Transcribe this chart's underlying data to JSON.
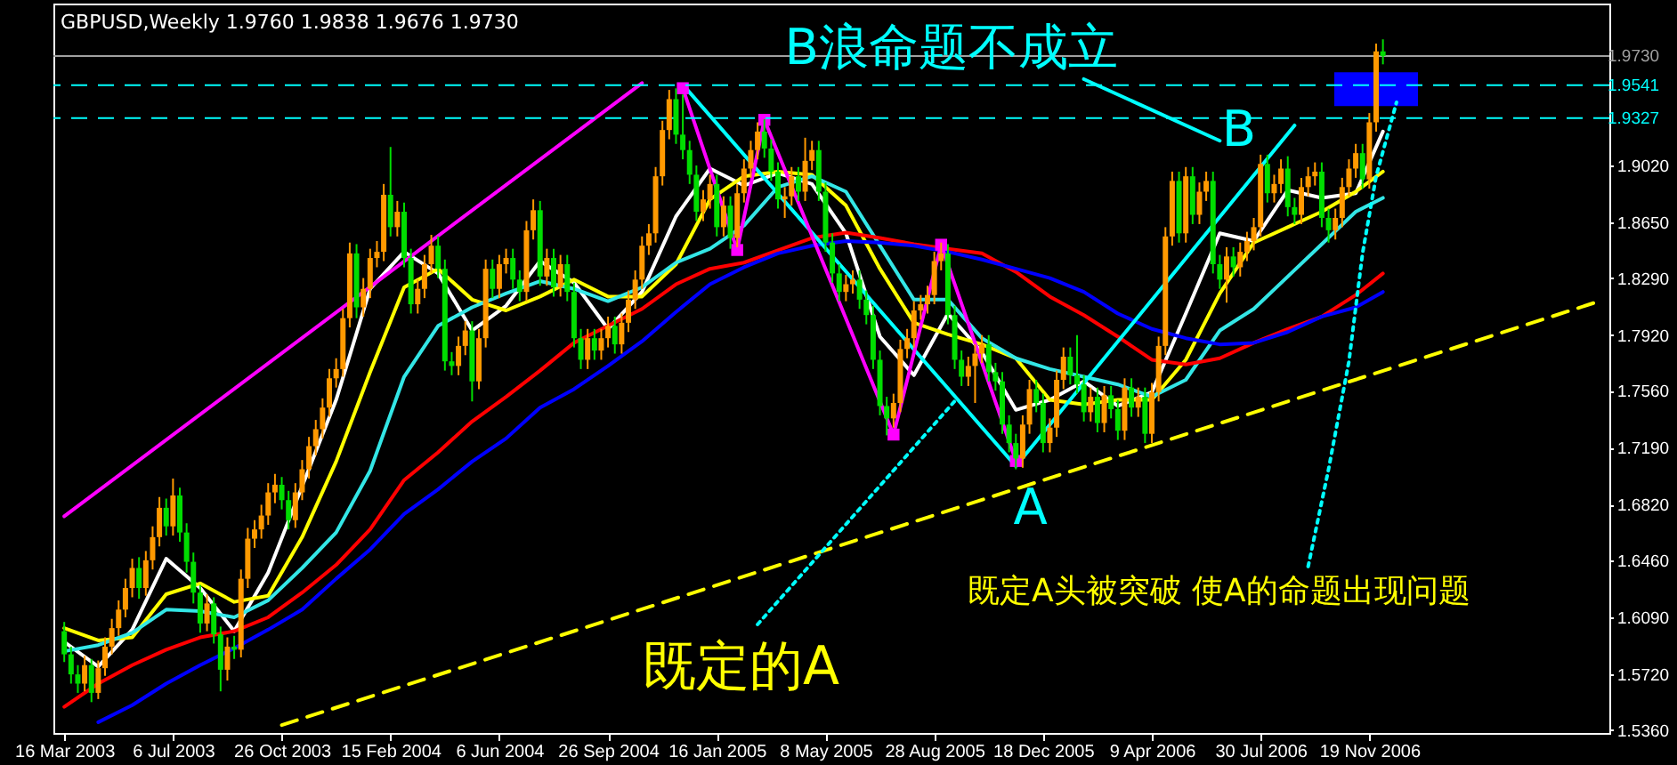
{
  "chart_data": {
    "type": "candlestick",
    "title": "GBPUSD,Weekly  1.9760 1.9838 1.9676 1.9730",
    "x": [
      "2003-03-16",
      "2003-03-23",
      "2003-03-30",
      "2003-04-06",
      "2003-04-13",
      "2003-04-20",
      "2003-04-27",
      "2003-05-04",
      "2003-05-11",
      "2003-05-18",
      "2003-05-25",
      "2003-06-01",
      "2003-06-08",
      "2003-06-15",
      "2003-06-22",
      "2003-06-29",
      "2003-07-06",
      "2003-07-13",
      "2003-07-20",
      "2003-07-27",
      "2003-08-03",
      "2003-08-10",
      "2003-08-17",
      "2003-08-24",
      "2003-08-31",
      "2003-09-07",
      "2003-09-14",
      "2003-09-21",
      "2003-09-28",
      "2003-10-05",
      "2003-10-12",
      "2003-10-19",
      "2003-10-26",
      "2003-11-02",
      "2003-11-09",
      "2003-11-16",
      "2003-11-23",
      "2003-11-30",
      "2003-12-07",
      "2003-12-14",
      "2003-12-21",
      "2003-12-28",
      "2004-01-04",
      "2004-01-11",
      "2004-01-18",
      "2004-01-25",
      "2004-02-01",
      "2004-02-08",
      "2004-02-15",
      "2004-02-22",
      "2004-02-29",
      "2004-03-07",
      "2004-03-14",
      "2004-03-21",
      "2004-03-28",
      "2004-04-04",
      "2004-04-11",
      "2004-04-18",
      "2004-04-25",
      "2004-05-02",
      "2004-05-09",
      "2004-05-16",
      "2004-05-23",
      "2004-05-30",
      "2004-06-06",
      "2004-06-13",
      "2004-06-20",
      "2004-06-27",
      "2004-07-04",
      "2004-07-11",
      "2004-07-18",
      "2004-07-25",
      "2004-08-01",
      "2004-08-08",
      "2004-08-15",
      "2004-08-22",
      "2004-08-29",
      "2004-09-05",
      "2004-09-12",
      "2004-09-19",
      "2004-09-26",
      "2004-10-03",
      "2004-10-10",
      "2004-10-17",
      "2004-10-24",
      "2004-10-31",
      "2004-11-07",
      "2004-11-14",
      "2004-11-21",
      "2004-11-28",
      "2004-12-05",
      "2004-12-12",
      "2004-12-19",
      "2004-12-26",
      "2005-01-02",
      "2005-01-09",
      "2005-01-16",
      "2005-01-23",
      "2005-01-30",
      "2005-02-06",
      "2005-02-13",
      "2005-02-20",
      "2005-02-27",
      "2005-03-06",
      "2005-03-13",
      "2005-03-20",
      "2005-03-27",
      "2005-04-03",
      "2005-04-10",
      "2005-04-17",
      "2005-04-24",
      "2005-05-01",
      "2005-05-08",
      "2005-05-15",
      "2005-05-22",
      "2005-05-29",
      "2005-06-05",
      "2005-06-12",
      "2005-06-19",
      "2005-06-26",
      "2005-07-03",
      "2005-07-10",
      "2005-07-17",
      "2005-07-24",
      "2005-07-31",
      "2005-08-07",
      "2005-08-14",
      "2005-08-21",
      "2005-08-28",
      "2005-09-04",
      "2005-09-11",
      "2005-09-18",
      "2005-09-25",
      "2005-10-02",
      "2005-10-09",
      "2005-10-16",
      "2005-10-23",
      "2005-10-30",
      "2005-11-06",
      "2005-11-13",
      "2005-11-20",
      "2005-11-27",
      "2005-12-04",
      "2005-12-11",
      "2005-12-18",
      "2005-12-25",
      "2006-01-01",
      "2006-01-08",
      "2006-01-15",
      "2006-01-22",
      "2006-01-29",
      "2006-02-05",
      "2006-02-12",
      "2006-02-19",
      "2006-02-26",
      "2006-03-05",
      "2006-03-12",
      "2006-03-19",
      "2006-03-26",
      "2006-04-02",
      "2006-04-09",
      "2006-04-16",
      "2006-04-23",
      "2006-04-30",
      "2006-05-07",
      "2006-05-14",
      "2006-05-21",
      "2006-05-28",
      "2006-06-04",
      "2006-06-11",
      "2006-06-18",
      "2006-06-25",
      "2006-07-02",
      "2006-07-09",
      "2006-07-16",
      "2006-07-23",
      "2006-07-30",
      "2006-08-06",
      "2006-08-13",
      "2006-08-20",
      "2006-08-27",
      "2006-09-03",
      "2006-09-10",
      "2006-09-17",
      "2006-09-24",
      "2006-10-01",
      "2006-10-08",
      "2006-10-15",
      "2006-10-22",
      "2006-10-29",
      "2006-11-05",
      "2006-11-12",
      "2006-11-19",
      "2006-11-26",
      "2006-12-03"
    ],
    "ohlc": [
      [
        1.6,
        1.606,
        1.58,
        1.585
      ],
      [
        1.585,
        1.59,
        1.566,
        1.572
      ],
      [
        1.572,
        1.578,
        1.56,
        1.566
      ],
      [
        1.566,
        1.584,
        1.561,
        1.578
      ],
      [
        1.578,
        1.582,
        1.554,
        1.56
      ],
      [
        1.56,
        1.581,
        1.556,
        1.576
      ],
      [
        1.576,
        1.596,
        1.571,
        1.59
      ],
      [
        1.59,
        1.608,
        1.585,
        1.602
      ],
      [
        1.602,
        1.62,
        1.597,
        1.614
      ],
      [
        1.614,
        1.634,
        1.609,
        1.628
      ],
      [
        1.628,
        1.647,
        1.622,
        1.641
      ],
      [
        1.641,
        1.648,
        1.621,
        1.628
      ],
      [
        1.628,
        1.652,
        1.623,
        1.646
      ],
      [
        1.646,
        1.668,
        1.64,
        1.661
      ],
      [
        1.661,
        1.687,
        1.655,
        1.68
      ],
      [
        1.68,
        1.686,
        1.662,
        1.668
      ],
      [
        1.668,
        1.699,
        1.662,
        1.688
      ],
      [
        1.688,
        1.693,
        1.658,
        1.664
      ],
      [
        1.664,
        1.67,
        1.638,
        1.645
      ],
      [
        1.645,
        1.651,
        1.618,
        1.625
      ],
      [
        1.625,
        1.63,
        1.599,
        1.605
      ],
      [
        1.605,
        1.624,
        1.6,
        1.618
      ],
      [
        1.618,
        1.622,
        1.592,
        1.598
      ],
      [
        1.598,
        1.603,
        1.561,
        1.575
      ],
      [
        1.575,
        1.596,
        1.568,
        1.59
      ],
      [
        1.59,
        1.597,
        1.582,
        1.588
      ],
      [
        1.588,
        1.64,
        1.583,
        1.634
      ],
      [
        1.634,
        1.667,
        1.628,
        1.66
      ],
      [
        1.66,
        1.672,
        1.654,
        1.666
      ],
      [
        1.666,
        1.682,
        1.66,
        1.675
      ],
      [
        1.675,
        1.696,
        1.669,
        1.69
      ],
      [
        1.69,
        1.702,
        1.683,
        1.695
      ],
      [
        1.695,
        1.7,
        1.679,
        1.685
      ],
      [
        1.685,
        1.691,
        1.666,
        1.672
      ],
      [
        1.672,
        1.696,
        1.667,
        1.69
      ],
      [
        1.69,
        1.711,
        1.685,
        1.705
      ],
      [
        1.705,
        1.726,
        1.699,
        1.72
      ],
      [
        1.72,
        1.737,
        1.714,
        1.731
      ],
      [
        1.731,
        1.751,
        1.725,
        1.745
      ],
      [
        1.745,
        1.77,
        1.739,
        1.764
      ],
      [
        1.764,
        1.777,
        1.758,
        1.77
      ],
      [
        1.77,
        1.809,
        1.765,
        1.803
      ],
      [
        1.803,
        1.852,
        1.797,
        1.845
      ],
      [
        1.845,
        1.851,
        1.803,
        1.81
      ],
      [
        1.81,
        1.829,
        1.804,
        1.822
      ],
      [
        1.822,
        1.848,
        1.816,
        1.842
      ],
      [
        1.842,
        1.853,
        1.836,
        1.846
      ],
      [
        1.846,
        1.89,
        1.84,
        1.883
      ],
      [
        1.883,
        1.914,
        1.856,
        1.862
      ],
      [
        1.862,
        1.879,
        1.856,
        1.872
      ],
      [
        1.872,
        1.878,
        1.836,
        1.842
      ],
      [
        1.842,
        1.848,
        1.806,
        1.812
      ],
      [
        1.812,
        1.828,
        1.806,
        1.822
      ],
      [
        1.822,
        1.844,
        1.816,
        1.838
      ],
      [
        1.838,
        1.857,
        1.832,
        1.85
      ],
      [
        1.85,
        1.856,
        1.829,
        1.835
      ],
      [
        1.835,
        1.841,
        1.769,
        1.775
      ],
      [
        1.775,
        1.781,
        1.766,
        1.772
      ],
      [
        1.772,
        1.791,
        1.766,
        1.785
      ],
      [
        1.785,
        1.801,
        1.779,
        1.795
      ],
      [
        1.795,
        1.801,
        1.749,
        1.762
      ],
      [
        1.762,
        1.796,
        1.757,
        1.79
      ],
      [
        1.79,
        1.841,
        1.784,
        1.835
      ],
      [
        1.835,
        1.841,
        1.816,
        1.822
      ],
      [
        1.822,
        1.844,
        1.816,
        1.838
      ],
      [
        1.838,
        1.848,
        1.832,
        1.842
      ],
      [
        1.842,
        1.848,
        1.822,
        1.828
      ],
      [
        1.828,
        1.834,
        1.814,
        1.82
      ],
      [
        1.82,
        1.866,
        1.814,
        1.86
      ],
      [
        1.86,
        1.88,
        1.854,
        1.873
      ],
      [
        1.873,
        1.879,
        1.824,
        1.83
      ],
      [
        1.83,
        1.848,
        1.824,
        1.842
      ],
      [
        1.842,
        1.848,
        1.817,
        1.823
      ],
      [
        1.823,
        1.844,
        1.817,
        1.838
      ],
      [
        1.838,
        1.844,
        1.814,
        1.82
      ],
      [
        1.82,
        1.826,
        1.784,
        1.79
      ],
      [
        1.79,
        1.796,
        1.77,
        1.776
      ],
      [
        1.776,
        1.796,
        1.77,
        1.79
      ],
      [
        1.79,
        1.796,
        1.776,
        1.782
      ],
      [
        1.782,
        1.796,
        1.776,
        1.79
      ],
      [
        1.79,
        1.804,
        1.784,
        1.798
      ],
      [
        1.798,
        1.804,
        1.78,
        1.786
      ],
      [
        1.786,
        1.806,
        1.78,
        1.8
      ],
      [
        1.8,
        1.821,
        1.794,
        1.815
      ],
      [
        1.815,
        1.834,
        1.809,
        1.828
      ],
      [
        1.828,
        1.856,
        1.822,
        1.85
      ],
      [
        1.85,
        1.864,
        1.844,
        1.858
      ],
      [
        1.858,
        1.901,
        1.852,
        1.895
      ],
      [
        1.895,
        1.931,
        1.889,
        1.925
      ],
      [
        1.925,
        1.951,
        1.919,
        1.945
      ],
      [
        1.945,
        1.952,
        1.916,
        1.922
      ],
      [
        1.922,
        1.948,
        1.906,
        1.912
      ],
      [
        1.912,
        1.918,
        1.89,
        1.896
      ],
      [
        1.896,
        1.902,
        1.866,
        1.872
      ],
      [
        1.872,
        1.886,
        1.866,
        1.88
      ],
      [
        1.88,
        1.896,
        1.874,
        1.89
      ],
      [
        1.89,
        1.896,
        1.856,
        1.862
      ],
      [
        1.862,
        1.882,
        1.856,
        1.876
      ],
      [
        1.876,
        1.882,
        1.848,
        1.855
      ],
      [
        1.855,
        1.89,
        1.849,
        1.884
      ],
      [
        1.884,
        1.906,
        1.878,
        1.9
      ],
      [
        1.9,
        1.918,
        1.894,
        1.912
      ],
      [
        1.912,
        1.93,
        1.906,
        1.924
      ],
      [
        1.924,
        1.932,
        1.907,
        1.913
      ],
      [
        1.913,
        1.919,
        1.892,
        1.898
      ],
      [
        1.898,
        1.904,
        1.874,
        1.88
      ],
      [
        1.88,
        1.888,
        1.868,
        1.882
      ],
      [
        1.882,
        1.901,
        1.876,
        1.895
      ],
      [
        1.895,
        1.901,
        1.879,
        1.885
      ],
      [
        1.885,
        1.92,
        1.879,
        1.905
      ],
      [
        1.905,
        1.918,
        1.899,
        1.912
      ],
      [
        1.912,
        1.918,
        1.879,
        1.885
      ],
      [
        1.885,
        1.891,
        1.846,
        1.852
      ],
      [
        1.852,
        1.858,
        1.826,
        1.832
      ],
      [
        1.832,
        1.838,
        1.814,
        1.82
      ],
      [
        1.82,
        1.831,
        1.814,
        1.825
      ],
      [
        1.825,
        1.834,
        1.819,
        1.828
      ],
      [
        1.828,
        1.834,
        1.809,
        1.815
      ],
      [
        1.815,
        1.821,
        1.799,
        1.805
      ],
      [
        1.805,
        1.811,
        1.77,
        1.776
      ],
      [
        1.776,
        1.782,
        1.74,
        1.746
      ],
      [
        1.746,
        1.752,
        1.727,
        1.738
      ],
      [
        1.738,
        1.754,
        1.732,
        1.748
      ],
      [
        1.748,
        1.789,
        1.742,
        1.783
      ],
      [
        1.783,
        1.796,
        1.777,
        1.79
      ],
      [
        1.79,
        1.814,
        1.784,
        1.808
      ],
      [
        1.808,
        1.818,
        1.802,
        1.812
      ],
      [
        1.812,
        1.824,
        1.806,
        1.818
      ],
      [
        1.818,
        1.846,
        1.812,
        1.84
      ],
      [
        1.84,
        1.852,
        1.834,
        1.845
      ],
      [
        1.845,
        1.851,
        1.799,
        1.805
      ],
      [
        1.805,
        1.811,
        1.77,
        1.776
      ],
      [
        1.776,
        1.782,
        1.759,
        1.765
      ],
      [
        1.765,
        1.778,
        1.759,
        1.772
      ],
      [
        1.772,
        1.786,
        1.748,
        1.78
      ],
      [
        1.78,
        1.792,
        1.774,
        1.786
      ],
      [
        1.786,
        1.792,
        1.762,
        1.768
      ],
      [
        1.768,
        1.774,
        1.756,
        1.762
      ],
      [
        1.762,
        1.768,
        1.728,
        1.734
      ],
      [
        1.734,
        1.74,
        1.716,
        1.722
      ],
      [
        1.722,
        1.728,
        1.705,
        1.712
      ],
      [
        1.712,
        1.74,
        1.706,
        1.734
      ],
      [
        1.734,
        1.763,
        1.728,
        1.757
      ],
      [
        1.757,
        1.763,
        1.742,
        1.748
      ],
      [
        1.748,
        1.754,
        1.716,
        1.722
      ],
      [
        1.722,
        1.738,
        1.716,
        1.732
      ],
      [
        1.732,
        1.769,
        1.726,
        1.763
      ],
      [
        1.763,
        1.784,
        1.757,
        1.778
      ],
      [
        1.778,
        1.784,
        1.76,
        1.766
      ],
      [
        1.766,
        1.792,
        1.754,
        1.76
      ],
      [
        1.76,
        1.766,
        1.736,
        1.742
      ],
      [
        1.742,
        1.758,
        1.736,
        1.752
      ],
      [
        1.752,
        1.758,
        1.729,
        1.735
      ],
      [
        1.735,
        1.759,
        1.729,
        1.753
      ],
      [
        1.753,
        1.759,
        1.738,
        1.744
      ],
      [
        1.744,
        1.75,
        1.724,
        1.73
      ],
      [
        1.73,
        1.764,
        1.724,
        1.758
      ],
      [
        1.758,
        1.764,
        1.739,
        1.745
      ],
      [
        1.745,
        1.758,
        1.739,
        1.752
      ],
      [
        1.752,
        1.758,
        1.722,
        1.728
      ],
      [
        1.728,
        1.761,
        1.722,
        1.755
      ],
      [
        1.755,
        1.791,
        1.749,
        1.785
      ],
      [
        1.785,
        1.862,
        1.779,
        1.856
      ],
      [
        1.856,
        1.898,
        1.85,
        1.892
      ],
      [
        1.892,
        1.898,
        1.852,
        1.858
      ],
      [
        1.858,
        1.901,
        1.852,
        1.895
      ],
      [
        1.895,
        1.901,
        1.864,
        1.87
      ],
      [
        1.87,
        1.891,
        1.864,
        1.885
      ],
      [
        1.885,
        1.898,
        1.879,
        1.892
      ],
      [
        1.892,
        1.898,
        1.832,
        1.838
      ],
      [
        1.838,
        1.844,
        1.822,
        1.828
      ],
      [
        1.828,
        1.849,
        1.813,
        1.843
      ],
      [
        1.843,
        1.849,
        1.83,
        1.836
      ],
      [
        1.836,
        1.852,
        1.83,
        1.846
      ],
      [
        1.846,
        1.859,
        1.84,
        1.853
      ],
      [
        1.853,
        1.868,
        1.847,
        1.862
      ],
      [
        1.862,
        1.909,
        1.856,
        1.903
      ],
      [
        1.903,
        1.909,
        1.878,
        1.884
      ],
      [
        1.884,
        1.896,
        1.878,
        1.89
      ],
      [
        1.89,
        1.906,
        1.884,
        1.9
      ],
      [
        1.9,
        1.908,
        1.869,
        1.875
      ],
      [
        1.875,
        1.881,
        1.864,
        1.87
      ],
      [
        1.87,
        1.894,
        1.864,
        1.888
      ],
      [
        1.888,
        1.901,
        1.882,
        1.895
      ],
      [
        1.895,
        1.904,
        1.889,
        1.898
      ],
      [
        1.898,
        1.904,
        1.862,
        1.868
      ],
      [
        1.868,
        1.874,
        1.852,
        1.86
      ],
      [
        1.86,
        1.874,
        1.854,
        1.868
      ],
      [
        1.868,
        1.894,
        1.862,
        1.888
      ],
      [
        1.888,
        1.906,
        1.882,
        1.9
      ],
      [
        1.9,
        1.916,
        1.894,
        1.91
      ],
      [
        1.91,
        1.916,
        1.887,
        1.893
      ],
      [
        1.893,
        1.936,
        1.887,
        1.93
      ],
      [
        1.93,
        1.981,
        1.924,
        1.976
      ],
      [
        1.976,
        1.9838,
        1.9676,
        1.973
      ]
    ],
    "colors": [
      "#00dd00",
      "#00dd00",
      "#00dd00",
      "#ff9900",
      "#00dd00",
      "#ff9900",
      "#ff9900",
      "#ff9900",
      "#ff9900",
      "#ff9900",
      "#ff9900",
      "#00dd00",
      "#ff9900",
      "#ff9900",
      "#ff9900",
      "#00dd00",
      "#ff9900",
      "#00dd00",
      "#00dd00",
      "#00dd00",
      "#00dd00",
      "#ff9900",
      "#00dd00",
      "#00dd00",
      "#ff9900",
      "#00dd00",
      "#ff9900",
      "#ff9900",
      "#ff9900",
      "#ff9900",
      "#ff9900",
      "#ff9900",
      "#00dd00",
      "#00dd00",
      "#ff9900",
      "#ff9900",
      "#ff9900",
      "#ff9900",
      "#ff9900",
      "#ff9900",
      "#ff9900",
      "#ff9900",
      "#ff9900",
      "#00dd00",
      "#ff9900",
      "#ff9900",
      "#ff9900",
      "#ff9900",
      "#00dd00",
      "#ff9900",
      "#00dd00",
      "#00dd00",
      "#ff9900",
      "#ff9900",
      "#ff9900",
      "#00dd00",
      "#00dd00",
      "#00dd00",
      "#ff9900",
      "#ff9900",
      "#00dd00",
      "#ff9900",
      "#ff9900",
      "#00dd00",
      "#ff9900",
      "#ff9900",
      "#00dd00",
      "#00dd00",
      "#ff9900",
      "#ff9900",
      "#00dd00",
      "#ff9900",
      "#00dd00",
      "#ff9900",
      "#00dd00",
      "#00dd00",
      "#00dd00",
      "#ff9900",
      "#00dd00",
      "#ff9900",
      "#ff9900",
      "#00dd00",
      "#ff9900",
      "#ff9900",
      "#ff9900",
      "#ff9900",
      "#ff9900",
      "#ff9900",
      "#ff9900",
      "#ff9900",
      "#00dd00",
      "#00dd00",
      "#00dd00",
      "#00dd00",
      "#ff9900",
      "#ff9900",
      "#00dd00",
      "#ff9900",
      "#00dd00",
      "#ff9900",
      "#ff9900",
      "#ff9900",
      "#ff9900",
      "#00dd00",
      "#00dd00",
      "#00dd00",
      "#ff9900",
      "#ff9900",
      "#00dd00",
      "#ff9900",
      "#ff9900",
      "#00dd00",
      "#00dd00",
      "#00dd00",
      "#00dd00",
      "#ff9900",
      "#ff9900",
      "#00dd00",
      "#00dd00",
      "#00dd00",
      "#00dd00",
      "#00dd00",
      "#ff9900",
      "#ff9900",
      "#ff9900",
      "#ff9900",
      "#ff9900",
      "#ff9900",
      "#ff9900",
      "#ff9900",
      "#00dd00",
      "#00dd00",
      "#00dd00",
      "#ff9900",
      "#ff9900",
      "#ff9900",
      "#00dd00",
      "#00dd00",
      "#00dd00",
      "#00dd00",
      "#00dd00",
      "#ff9900",
      "#ff9900",
      "#00dd00",
      "#00dd00",
      "#ff9900",
      "#ff9900",
      "#ff9900",
      "#00dd00",
      "#00dd00",
      "#00dd00",
      "#ff9900",
      "#00dd00",
      "#ff9900",
      "#00dd00",
      "#00dd00",
      "#ff9900",
      "#00dd00",
      "#ff9900",
      "#00dd00",
      "#ff9900",
      "#ff9900",
      "#ff9900",
      "#ff9900",
      "#00dd00",
      "#ff9900",
      "#00dd00",
      "#ff9900",
      "#ff9900",
      "#00dd00",
      "#00dd00",
      "#ff9900",
      "#00dd00",
      "#ff9900",
      "#ff9900",
      "#ff9900",
      "#ff9900",
      "#00dd00",
      "#ff9900",
      "#ff9900",
      "#00dd00",
      "#00dd00",
      "#ff9900",
      "#ff9900",
      "#ff9900",
      "#00dd00",
      "#00dd00",
      "#ff9900",
      "#ff9900",
      "#ff9900",
      "#ff9900",
      "#00dd00",
      "#ff9900",
      "#ff9900",
      "#00dd00"
    ],
    "series": [
      {
        "type": "bar",
        "color": "#0000ff",
        "x": [
          "2006-11-26"
        ],
        "base": [
          1.9405
        ],
        "values": [
          0.022
        ]
      },
      {
        "type": "line",
        "color": "#ffffff",
        "x": [
          "2003-03-16",
          "2003-04-20",
          "2003-05-25",
          "2003-06-29",
          "2003-08-03",
          "2003-09-07",
          "2003-10-12",
          "2003-11-16",
          "2003-12-21",
          "2004-01-25",
          "2004-02-29",
          "2004-04-04",
          "2004-05-09",
          "2004-06-13",
          "2004-07-18",
          "2004-08-22",
          "2004-09-26",
          "2004-10-31",
          "2004-12-05",
          "2005-01-09",
          "2005-02-13",
          "2005-03-20",
          "2005-04-24",
          "2005-05-29",
          "2005-07-03",
          "2005-08-07",
          "2005-09-11",
          "2005-10-16",
          "2005-11-20",
          "2005-12-25",
          "2006-01-29",
          "2006-03-05",
          "2006-04-09",
          "2006-05-14",
          "2006-06-18",
          "2006-07-23",
          "2006-08-27",
          "2006-10-01",
          "2006-11-05",
          "2006-12-03"
        ],
        "values": [
          1.593,
          1.577,
          1.601,
          1.647,
          1.628,
          1.6,
          1.638,
          1.694,
          1.75,
          1.822,
          1.846,
          1.832,
          1.795,
          1.811,
          1.84,
          1.826,
          1.796,
          1.82,
          1.869,
          1.9,
          1.889,
          1.897,
          1.89,
          1.858,
          1.791,
          1.766,
          1.806,
          1.781,
          1.7435,
          1.75,
          1.762,
          1.746,
          1.755,
          1.806,
          1.858,
          1.853,
          1.886,
          1.881,
          1.884,
          1.924
        ]
      },
      {
        "type": "line",
        "color": "#ffff00",
        "x": [
          "2003-03-16",
          "2003-04-20",
          "2003-05-25",
          "2003-06-29",
          "2003-08-03",
          "2003-09-07",
          "2003-10-12",
          "2003-11-16",
          "2003-12-21",
          "2004-01-25",
          "2004-02-29",
          "2004-04-04",
          "2004-05-09",
          "2004-06-13",
          "2004-07-18",
          "2004-08-22",
          "2004-09-26",
          "2004-10-31",
          "2004-12-05",
          "2005-01-09",
          "2005-02-13",
          "2005-03-20",
          "2005-04-24",
          "2005-05-29",
          "2005-07-03",
          "2005-08-07",
          "2005-09-11",
          "2005-10-16",
          "2005-11-20",
          "2005-12-25",
          "2006-01-29",
          "2006-03-05",
          "2006-04-09",
          "2006-05-14",
          "2006-06-18",
          "2006-07-23",
          "2006-08-27",
          "2006-10-01",
          "2006-11-05",
          "2006-12-03"
        ],
        "values": [
          1.602,
          1.594,
          1.596,
          1.624,
          1.631,
          1.619,
          1.623,
          1.661,
          1.71,
          1.768,
          1.823,
          1.835,
          1.815,
          1.808,
          1.817,
          1.828,
          1.817,
          1.817,
          1.838,
          1.88,
          1.895,
          1.898,
          1.896,
          1.876,
          1.835,
          1.8,
          1.7925,
          1.786,
          1.777,
          1.75,
          1.747,
          1.75,
          1.75,
          1.776,
          1.819,
          1.852,
          1.862,
          1.872,
          1.885,
          1.898
        ]
      },
      {
        "type": "line",
        "color": "#33e6e6",
        "x": [
          "2003-03-16",
          "2003-04-20",
          "2003-05-25",
          "2003-06-29",
          "2003-08-03",
          "2003-09-07",
          "2003-10-12",
          "2003-11-16",
          "2003-12-21",
          "2004-01-25",
          "2004-02-29",
          "2004-04-04",
          "2004-05-09",
          "2004-06-13",
          "2004-07-18",
          "2004-08-22",
          "2004-09-26",
          "2004-10-31",
          "2004-12-05",
          "2005-01-09",
          "2005-02-13",
          "2005-03-20",
          "2005-04-24",
          "2005-05-29",
          "2005-07-03",
          "2005-08-07",
          "2005-09-11",
          "2005-10-16",
          "2005-11-20",
          "2005-12-25",
          "2006-01-29",
          "2006-03-05",
          "2006-04-09",
          "2006-05-14",
          "2006-06-18",
          "2006-07-23",
          "2006-08-27",
          "2006-10-01",
          "2006-11-05",
          "2006-12-03"
        ],
        "values": [
          1.587,
          1.591,
          1.599,
          1.614,
          1.613,
          1.609,
          1.62,
          1.641,
          1.664,
          1.704,
          1.765,
          1.798,
          1.81,
          1.819,
          1.827,
          1.822,
          1.814,
          1.823,
          1.839,
          1.848,
          1.863,
          1.888,
          1.895,
          1.885,
          1.85,
          1.815,
          1.815,
          1.79,
          1.777,
          1.77,
          1.765,
          1.76,
          1.752,
          1.763,
          1.795,
          1.809,
          1.83,
          1.851,
          1.872,
          1.881
        ]
      },
      {
        "type": "line",
        "color": "#ff0000",
        "x": [
          "2003-03-16",
          "2003-04-20",
          "2003-05-25",
          "2003-06-29",
          "2003-08-03",
          "2003-09-07",
          "2003-10-12",
          "2003-11-16",
          "2003-12-21",
          "2004-01-25",
          "2004-02-29",
          "2004-04-04",
          "2004-05-09",
          "2004-06-13",
          "2004-07-18",
          "2004-08-22",
          "2004-09-26",
          "2004-10-31",
          "2004-12-05",
          "2005-01-09",
          "2005-02-13",
          "2005-03-20",
          "2005-04-24",
          "2005-05-29",
          "2005-07-03",
          "2005-08-07",
          "2005-09-11",
          "2005-10-16",
          "2005-11-20",
          "2005-12-25",
          "2006-01-29",
          "2006-03-05",
          "2006-04-09",
          "2006-05-14",
          "2006-06-18",
          "2006-07-23",
          "2006-08-27",
          "2006-10-01",
          "2006-11-05",
          "2006-12-03"
        ],
        "values": [
          1.551,
          1.566,
          1.578,
          1.588,
          1.596,
          1.6,
          1.609,
          1.625,
          1.643,
          1.666,
          1.698,
          1.716,
          1.736,
          1.752,
          1.769,
          1.787,
          1.798,
          1.809,
          1.825,
          1.835,
          1.839,
          1.847,
          1.855,
          1.8585,
          1.855,
          1.851,
          1.848,
          1.845,
          1.833,
          1.817,
          1.805,
          1.791,
          1.776,
          1.773,
          1.777,
          1.787,
          1.796,
          1.804,
          1.818,
          1.832
        ]
      },
      {
        "type": "line",
        "color": "#0000ff",
        "x": [
          "2003-04-20",
          "2003-05-25",
          "2003-06-29",
          "2003-08-03",
          "2003-09-07",
          "2003-10-12",
          "2003-11-16",
          "2003-12-21",
          "2004-01-25",
          "2004-02-29",
          "2004-04-04",
          "2004-05-09",
          "2004-06-13",
          "2004-07-18",
          "2004-08-22",
          "2004-09-26",
          "2004-10-31",
          "2004-12-05",
          "2005-01-09",
          "2005-02-13",
          "2005-03-20",
          "2005-04-24",
          "2005-05-29",
          "2005-07-03",
          "2005-08-07",
          "2005-09-11",
          "2005-10-16",
          "2005-11-20",
          "2005-12-25",
          "2006-01-29",
          "2006-03-05",
          "2006-04-09",
          "2006-05-14",
          "2006-06-18",
          "2006-07-23",
          "2006-08-27",
          "2006-10-01",
          "2006-11-05",
          "2006-12-03"
        ],
        "values": [
          1.541,
          1.552,
          1.566,
          1.578,
          1.589,
          1.601,
          1.614,
          1.634,
          1.653,
          1.676,
          1.692,
          1.71,
          1.725,
          1.745,
          1.757,
          1.772,
          1.788,
          1.807,
          1.825,
          1.836,
          1.845,
          1.85,
          1.853,
          1.852,
          1.85,
          1.846,
          1.841,
          1.835,
          1.829,
          1.82,
          1.806,
          1.796,
          1.79,
          1.786,
          1.787,
          1.794,
          1.804,
          1.81,
          1.82
        ]
      },
      {
        "type": "line",
        "color": "#ff00ff",
        "x": [
          "2003-03-16",
          "2004-10-31"
        ],
        "values": [
          1.6745,
          1.9555
        ]
      },
      {
        "type": "line",
        "color": "#ff00ff",
        "marker": "square",
        "x": [
          "2004-12-12",
          "2005-02-06",
          "2005-03-06",
          "2005-07-17",
          "2005-09-04",
          "2005-11-20"
        ],
        "values": [
          1.9521,
          1.8472,
          1.9316,
          1.7275,
          1.8506,
          1.7104
        ]
      },
      {
        "type": "line",
        "color": "#00ffff",
        "x": [
          "2004-12-12",
          "2005-11-20",
          "2006-09-03"
        ],
        "values": [
          1.9544,
          1.707,
          1.928
        ]
      },
      {
        "type": "line",
        "color": "#ffff00",
        "line_style": "dashed",
        "x": [
          "2003-10-26",
          "2007-07-08"
        ],
        "values": [
          1.5391,
          1.8128
        ]
      },
      {
        "type": "line",
        "color": "#00ffff",
        "line_style": "dotted",
        "x": [
          "2005-02-27",
          "2005-09-18"
        ],
        "values": [
          1.6044,
          1.7492
        ]
      },
      {
        "type": "line",
        "color": "#00ffff",
        "line_style": "dotted",
        "x": [
          "2006-09-17",
          "2006-10-08",
          "2006-10-29",
          "2006-11-12",
          "2006-11-26",
          "2006-12-17"
        ],
        "values": [
          1.642,
          1.705,
          1.775,
          1.845,
          1.895,
          1.943
        ]
      },
      {
        "type": "line",
        "color": "#00ffff",
        "x": [
          "2006-01-29",
          "2006-06-18"
        ],
        "values": [
          1.958,
          1.918
        ]
      }
    ],
    "xlim": [
      "2003-03-14",
      "2007-07-15"
    ],
    "ylim": [
      1.534,
      2.007
    ],
    "xticks": [
      {
        "value": "2003-03-16",
        "label": "16 Mar 2003"
      },
      {
        "value": "2003-07-06",
        "label": "6 Jul 2003"
      },
      {
        "value": "2003-10-26",
        "label": "26 Oct 2003"
      },
      {
        "value": "2004-02-15",
        "label": "15 Feb 2004"
      },
      {
        "value": "2004-06-06",
        "label": "6 Jun 2004"
      },
      {
        "value": "2004-09-26",
        "label": "26 Sep 2004"
      },
      {
        "value": "2005-01-16",
        "label": "16 Jan 2005"
      },
      {
        "value": "2005-05-08",
        "label": "8 May 2005"
      },
      {
        "value": "2005-08-28",
        "label": "28 Aug 2005"
      },
      {
        "value": "2005-12-18",
        "label": "18 Dec 2005"
      },
      {
        "value": "2006-04-09",
        "label": "9 Apr 2006"
      },
      {
        "value": "2006-07-30",
        "label": "30 Jul 2006"
      },
      {
        "value": "2006-11-19",
        "label": "19 Nov 2006"
      }
    ],
    "yticks": [
      {
        "value": 1.536,
        "label": "1.5360"
      },
      {
        "value": 1.572,
        "label": "1.5720"
      },
      {
        "value": 1.609,
        "label": "1.6090"
      },
      {
        "value": 1.646,
        "label": "1.6460"
      },
      {
        "value": 1.682,
        "label": "1.6820"
      },
      {
        "value": 1.719,
        "label": "1.7190"
      },
      {
        "value": 1.756,
        "label": "1.7560"
      },
      {
        "value": 1.792,
        "label": "1.7920"
      },
      {
        "value": 1.829,
        "label": "1.8290"
      },
      {
        "value": 1.865,
        "label": "1.8650"
      },
      {
        "value": 1.902,
        "label": "1.9020"
      }
    ],
    "ref_lines": [
      {
        "axis": "y",
        "value": 1.973,
        "label": "1.9730",
        "color": "#a0a0a0",
        "line_style": "solid"
      },
      {
        "axis": "y",
        "value": 1.9541,
        "label": "1.9541",
        "color": "#00ffff",
        "line_style": "dashed"
      },
      {
        "axis": "y",
        "value": 1.9327,
        "label": "1.9327",
        "color": "#00ffff",
        "line_style": "dashed"
      }
    ],
    "annotations": [
      "B浪命题不成立",
      "B",
      "A",
      "既定A头被突破 使A的命题出现问题",
      "既定的A"
    ]
  }
}
